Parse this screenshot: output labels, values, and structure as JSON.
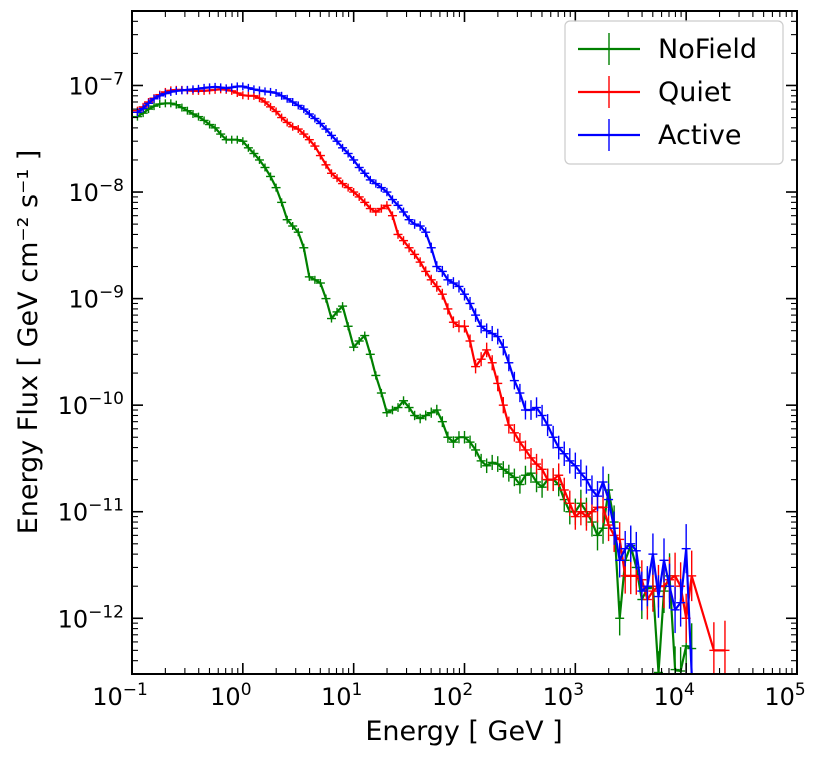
{
  "chart_data": {
    "type": "line",
    "xlabel": "Energy [ GeV ]",
    "ylabel": "Energy Flux [ GeV cm⁻² s⁻¹ ]",
    "xscale": "log",
    "yscale": "log",
    "xlim": [
      0.1,
      100000
    ],
    "ylim": [
      3e-13,
      5e-07
    ],
    "grid": false,
    "legend_position": "top-right",
    "xticks": [
      {
        "base": "10",
        "exp": "−1",
        "value": 0.1
      },
      {
        "base": "10",
        "exp": "0",
        "value": 1
      },
      {
        "base": "10",
        "exp": "1",
        "value": 10
      },
      {
        "base": "10",
        "exp": "2",
        "value": 100
      },
      {
        "base": "10",
        "exp": "3",
        "value": 1000
      },
      {
        "base": "10",
        "exp": "4",
        "value": 10000
      },
      {
        "base": "10",
        "exp": "5",
        "value": 100000
      }
    ],
    "yticks": [
      {
        "base": "10",
        "exp": "−12",
        "value": 1e-12
      },
      {
        "base": "10",
        "exp": "−11",
        "value": 1e-11
      },
      {
        "base": "10",
        "exp": "−10",
        "value": 1e-10
      },
      {
        "base": "10",
        "exp": "−9",
        "value": 1e-09
      },
      {
        "base": "10",
        "exp": "−8",
        "value": 1e-08
      },
      {
        "base": "10",
        "exp": "−7",
        "value": 1e-07
      }
    ],
    "series": [
      {
        "name": "NoField",
        "color": "#008000",
        "x": [
          0.112,
          0.126,
          0.141,
          0.158,
          0.178,
          0.2,
          0.224,
          0.251,
          0.282,
          0.316,
          0.355,
          0.398,
          0.447,
          0.501,
          0.562,
          0.631,
          0.708,
          0.794,
          0.891,
          1.0,
          1.122,
          1.259,
          1.413,
          1.585,
          1.778,
          1.995,
          2.239,
          2.512,
          2.818,
          3.162,
          3.548,
          3.981,
          4.467,
          5.012,
          5.623,
          6.31,
          7.079,
          7.943,
          8.913,
          10.0,
          11.22,
          12.59,
          14.13,
          15.85,
          17.78,
          19.95,
          22.39,
          25.12,
          28.18,
          31.62,
          35.48,
          39.81,
          44.67,
          50.12,
          56.23,
          63.1,
          70.79,
          79.43,
          89.13,
          100.0,
          112.2,
          125.9,
          141.3,
          158.5,
          177.8,
          199.5,
          223.9,
          251.2,
          281.8,
          316.2,
          354.8,
          398.1,
          446.7,
          501.2,
          562.3,
          631.0,
          707.9,
          794.3,
          891.3,
          1000,
          1122,
          1259,
          1413,
          1585,
          1778,
          1995,
          2239,
          2512,
          2818,
          3162,
          3548,
          3981,
          4467,
          5012,
          5623,
          6310,
          7079,
          7943,
          8913,
          10000,
          11220
        ],
        "y": [
          5.1e-08,
          5.5e-08,
          6e-08,
          6.4e-08,
          6.7e-08,
          6.8e-08,
          6.8e-08,
          6.6e-08,
          6.2e-08,
          5.8e-08,
          5.4e-08,
          5.1e-08,
          4.7e-08,
          4.3e-08,
          4e-08,
          3.5e-08,
          3.1e-08,
          3.1e-08,
          3.1e-08,
          3e-08,
          2.6e-08,
          2.3e-08,
          2e-08,
          1.7e-08,
          1.4e-08,
          1.1e-08,
          8e-09,
          5.5e-09,
          4.8e-09,
          4.2e-09,
          3e-09,
          1.6e-09,
          1.5e-09,
          1.4e-09,
          1e-09,
          6.5e-10,
          7.5e-10,
          8.5e-10,
          5.5e-10,
          3.5e-10,
          4e-10,
          4.5e-10,
          3e-10,
          1.9e-10,
          1.3e-10,
          8.5e-11,
          9e-11,
          9.5e-11,
          1.1e-10,
          9.5e-11,
          8e-11,
          7.5e-11,
          8e-11,
          8.5e-11,
          9e-11,
          7e-11,
          5e-11,
          4.5e-11,
          5e-11,
          5e-11,
          4.5e-11,
          3.8e-11,
          3e-11,
          2.7e-11,
          2.9e-11,
          2.8e-11,
          2.5e-11,
          2.3e-11,
          2.1e-11,
          1.8e-11,
          2.2e-11,
          2.3e-11,
          1.9e-11,
          1.7e-11,
          2e-11,
          2e-11,
          1.8e-11,
          1.3e-11,
          1e-11,
          1e-11,
          1.2e-11,
          1e-11,
          8e-12,
          6e-12,
          7e-12,
          1.6e-11,
          8e-12,
          1e-12,
          3.5e-12,
          4.8e-12,
          3e-12,
          1.5e-12,
          1.9e-12,
          2e-12,
          3.1e-13,
          1.8e-12,
          2.5e-12,
          3.3e-13,
          3.2e-13,
          5.5e-13,
          5.2e-13
        ]
      },
      {
        "name": "Quiet",
        "color": "#ff0000",
        "x": [
          0.112,
          0.126,
          0.141,
          0.158,
          0.178,
          0.2,
          0.224,
          0.251,
          0.282,
          0.316,
          0.355,
          0.398,
          0.447,
          0.501,
          0.562,
          0.631,
          0.708,
          0.794,
          0.891,
          1.0,
          1.122,
          1.259,
          1.413,
          1.585,
          1.778,
          1.995,
          2.239,
          2.512,
          2.818,
          3.162,
          3.548,
          3.981,
          4.467,
          5.012,
          5.623,
          6.31,
          7.079,
          7.943,
          8.913,
          10.0,
          11.22,
          12.59,
          14.13,
          15.85,
          17.78,
          19.95,
          22.39,
          25.12,
          28.18,
          31.62,
          35.48,
          39.81,
          44.67,
          50.12,
          56.23,
          63.1,
          70.79,
          79.43,
          89.13,
          100.0,
          112.2,
          125.9,
          141.3,
          158.5,
          177.8,
          199.5,
          223.9,
          251.2,
          281.8,
          316.2,
          354.8,
          398.1,
          446.7,
          501.2,
          562.3,
          631.0,
          707.9,
          794.3,
          891.3,
          1000,
          1122,
          1259,
          1413,
          1585,
          1778,
          1995,
          2239,
          2512,
          2818,
          3162,
          3548,
          3981,
          4467,
          5012,
          5623,
          6310,
          7079,
          7943,
          8913,
          10000,
          11220,
          17780,
          22390
        ],
        "y": [
          5.8e-08,
          6.3e-08,
          7e-08,
          7.6e-08,
          8.2e-08,
          8.7e-08,
          9e-08,
          9.1e-08,
          9.1e-08,
          9e-08,
          8.9e-08,
          8.9e-08,
          8.9e-08,
          9e-08,
          9.1e-08,
          9.2e-08,
          9.1e-08,
          8.9e-08,
          8.5e-08,
          8.1e-08,
          8e-08,
          8e-08,
          7.6e-08,
          7e-08,
          6.3e-08,
          5.7e-08,
          5e-08,
          4.5e-08,
          4.1e-08,
          3.9e-08,
          3.5e-08,
          3.1e-08,
          2.7e-08,
          2.2e-08,
          1.8e-08,
          1.5e-08,
          1.35e-08,
          1.2e-08,
          1.1e-08,
          1e-08,
          9e-09,
          8e-09,
          7e-09,
          6.5e-09,
          7e-09,
          7.5e-09,
          6e-09,
          4e-09,
          3.5e-09,
          3e-09,
          2.6e-09,
          2.2e-09,
          1.8e-09,
          1.5e-09,
          1.3e-09,
          1.1e-09,
          8e-10,
          6e-10,
          5.5e-10,
          5.5e-10,
          4e-10,
          2.3e-10,
          2.7e-10,
          3.3e-10,
          2.5e-10,
          1.6e-10,
          1e-10,
          6.5e-11,
          5.5e-11,
          4.5e-11,
          3.8e-11,
          3.2e-11,
          2.8e-11,
          2.5e-11,
          2e-11,
          2e-11,
          2.2e-11,
          1.6e-11,
          1.2e-11,
          9e-12,
          1e-11,
          9e-12,
          1e-11,
          1.1e-11,
          1.1e-11,
          7.5e-12,
          6e-12,
          5.5e-12,
          2.5e-12,
          2.5e-12,
          2.5e-12,
          2.3e-12,
          1.5e-12,
          1.8e-12,
          2e-12,
          2e-12,
          2.3e-12,
          2.5e-12,
          2e-12,
          1e-12,
          2.5e-12,
          5e-13,
          5e-13
        ]
      },
      {
        "name": "Active",
        "color": "#0000ff",
        "x": [
          0.112,
          0.126,
          0.141,
          0.158,
          0.178,
          0.2,
          0.224,
          0.251,
          0.282,
          0.316,
          0.355,
          0.398,
          0.447,
          0.501,
          0.562,
          0.631,
          0.708,
          0.794,
          0.891,
          1.0,
          1.122,
          1.259,
          1.413,
          1.585,
          1.778,
          1.995,
          2.239,
          2.512,
          2.818,
          3.162,
          3.548,
          3.981,
          4.467,
          5.012,
          5.623,
          6.31,
          7.079,
          7.943,
          8.913,
          10.0,
          11.22,
          12.59,
          14.13,
          15.85,
          17.78,
          19.95,
          22.39,
          25.12,
          28.18,
          31.62,
          35.48,
          39.81,
          44.67,
          50.12,
          56.23,
          63.1,
          70.79,
          79.43,
          89.13,
          100.0,
          112.2,
          125.9,
          141.3,
          158.5,
          177.8,
          199.5,
          223.9,
          251.2,
          281.8,
          316.2,
          354.8,
          398.1,
          446.7,
          501.2,
          562.3,
          631.0,
          707.9,
          794.3,
          891.3,
          1000,
          1122,
          1259,
          1413,
          1585,
          1778,
          1995,
          2239,
          2512,
          2818,
          3162,
          3548,
          3981,
          4467,
          5012,
          5623,
          6310,
          7079,
          7943,
          8913,
          10000,
          11220
        ],
        "y": [
          5.6e-08,
          6.1e-08,
          6.8e-08,
          7.5e-08,
          8e-08,
          8.4e-08,
          8.7e-08,
          8.9e-08,
          9e-08,
          9.1e-08,
          9.2e-08,
          9.3e-08,
          9.5e-08,
          9.6e-08,
          9.7e-08,
          9.6e-08,
          9.4e-08,
          9.6e-08,
          9.8e-08,
          9.8e-08,
          9.5e-08,
          9.2e-08,
          9e-08,
          8.8e-08,
          8.7e-08,
          8.5e-08,
          8e-08,
          7.5e-08,
          7e-08,
          6.5e-08,
          6e-08,
          5.4e-08,
          4.9e-08,
          4.4e-08,
          3.9e-08,
          3.4e-08,
          3e-08,
          2.6e-08,
          2.3e-08,
          2e-08,
          1.7e-08,
          1.5e-08,
          1.3e-08,
          1.2e-08,
          1.1e-08,
          1e-08,
          8.5e-09,
          7.5e-09,
          6.5e-09,
          5.5e-09,
          5e-09,
          4.8e-09,
          4.2e-09,
          3e-09,
          2e-09,
          1.8e-09,
          1.5e-09,
          1.4e-09,
          1.3e-09,
          1.1e-09,
          9e-10,
          7e-10,
          5.5e-10,
          5e-10,
          4.7e-10,
          4.4e-10,
          3.5e-10,
          2.5e-10,
          1.7e-10,
          1.3e-10,
          9e-11,
          9e-11,
          9.5e-11,
          8e-11,
          6.5e-11,
          5e-11,
          4e-11,
          3.5e-11,
          3e-11,
          2.7e-11,
          2.3e-11,
          2e-11,
          1.6e-11,
          1.4e-11,
          1.9e-11,
          1.3e-11,
          7e-12,
          3.5e-12,
          4.5e-12,
          5e-12,
          4.3e-12,
          1.8e-12,
          2e-12,
          4e-12,
          1.6e-12,
          3.5e-12,
          2e-12,
          1.2e-12,
          1.4e-12,
          4.5e-12,
          3e-13
        ]
      }
    ]
  }
}
